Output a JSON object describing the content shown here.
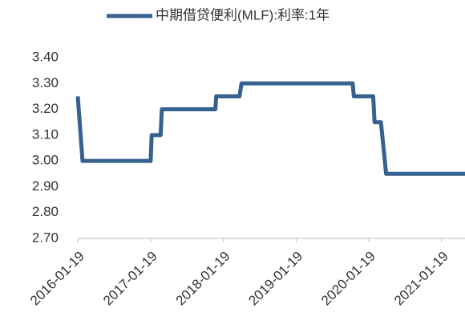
{
  "chart_data": {
    "type": "line",
    "x": [
      "2016-01-19",
      "2016-02-12",
      "2017-01-19",
      "2017-01-24",
      "2017-03-10",
      "2017-03-16",
      "2017-12-10",
      "2017-12-14",
      "2018-04-10",
      "2018-04-20",
      "2019-10-30",
      "2019-11-05",
      "2020-02-10",
      "2020-02-17",
      "2020-03-20",
      "2020-04-15",
      "2021-05-16"
    ],
    "series": [
      {
        "name": "中期借贷便利(MLF):利率:1年",
        "color": "#35618f",
        "values": [
          3.25,
          3.0,
          3.0,
          3.1,
          3.1,
          3.2,
          3.2,
          3.25,
          3.25,
          3.3,
          3.3,
          3.25,
          3.25,
          3.15,
          3.15,
          2.95,
          2.95
        ]
      }
    ],
    "xlim": [
      "2016-01-19",
      "2021-05-16"
    ],
    "xticks": [
      "2016-01-19",
      "2017-01-19",
      "2018-01-19",
      "2019-01-19",
      "2020-01-19",
      "2021-01-19"
    ],
    "ylim": [
      2.7,
      3.4
    ],
    "yticks": [
      {
        "value": 2.7,
        "label": "2.70"
      },
      {
        "value": 2.8,
        "label": "2.80"
      },
      {
        "value": 2.9,
        "label": "2.90"
      },
      {
        "value": 3.0,
        "label": "3.00"
      },
      {
        "value": 3.1,
        "label": "3.10"
      },
      {
        "value": 3.2,
        "label": "3.20"
      },
      {
        "value": 3.3,
        "label": "3.30"
      },
      {
        "value": 3.4,
        "label": "3.40"
      }
    ],
    "legend": "top",
    "grid": false
  }
}
